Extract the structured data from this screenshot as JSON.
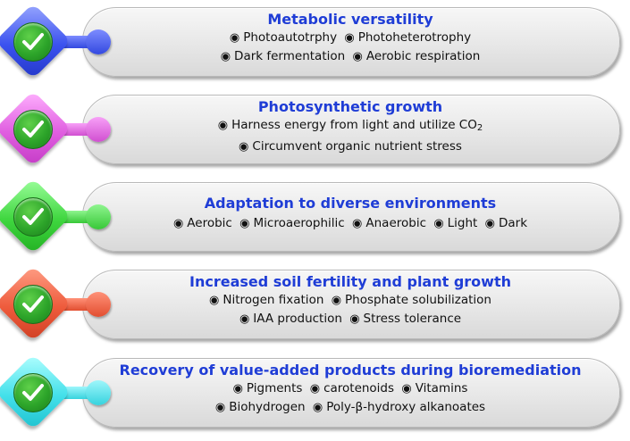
{
  "items": [
    {
      "color": "#3b52ef",
      "icon": "check-icon",
      "title": "Metabolic versatility",
      "line1": [
        "Photoautotrphy",
        "Photoheterotrophy"
      ],
      "line2": [
        "Dark fermentation",
        "Aerobic respiration"
      ]
    },
    {
      "color": "#e05ee0",
      "icon": "check-icon",
      "title": "Photosynthetic growth",
      "line1_text": "Harness energy from light and utilize CO",
      "line1_sub": "2",
      "line2": [
        "Circumvent organic nutrient stress"
      ]
    },
    {
      "color": "#3fd63f",
      "icon": "check-icon",
      "title": "Adaptation to diverse environments",
      "line1": [
        "Aerobic",
        "Microaerophilic",
        "Anaerobic",
        "Light",
        "Dark"
      ]
    },
    {
      "color": "#ee5b3c",
      "icon": "check-icon",
      "title": "Increased soil fertility and plant growth",
      "line1": [
        "Nitrogen fixation",
        "Phosphate solubilization"
      ],
      "line2": [
        "IAA production",
        "Stress tolerance"
      ]
    },
    {
      "color": "#43e0ea",
      "icon": "check-icon",
      "title": "Recovery of value-added products during bioremediation",
      "line1": [
        "Pigments",
        "carotenoids",
        "Vitamins"
      ],
      "line2": [
        "Biohydrogen",
        "Poly-β-hydroxy alkanoates"
      ]
    }
  ]
}
